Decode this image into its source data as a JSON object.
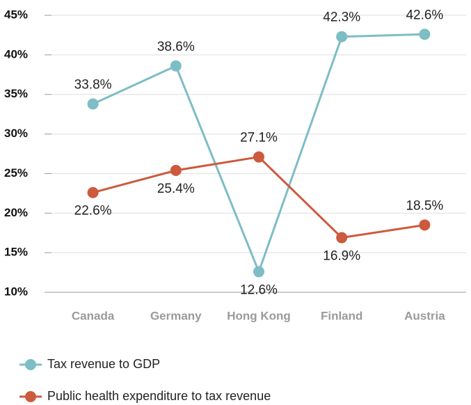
{
  "chart_data": {
    "type": "line",
    "categories": [
      "Canada",
      "Germany",
      "Hong Kong",
      "Finland",
      "Austria"
    ],
    "series": [
      {
        "name": "Tax revenue to GDP",
        "color": "#7dbdc5",
        "values": [
          33.8,
          38.6,
          12.6,
          42.3,
          42.6
        ],
        "value_labels": [
          "33.8%",
          "38.6%",
          "12.6%",
          "42.3%",
          "42.6%"
        ]
      },
      {
        "name": "Public health expenditure to tax revenue",
        "color": "#cc5a3d",
        "values": [
          22.6,
          25.4,
          27.1,
          16.9,
          18.5
        ],
        "value_labels": [
          "22.6%",
          "25.4%",
          "27.1%",
          "16.9%",
          "18.5%"
        ]
      }
    ],
    "ylim": [
      10,
      45
    ],
    "yticks": [
      {
        "value": 10,
        "label": "10%"
      },
      {
        "value": 15,
        "label": "15%"
      },
      {
        "value": 20,
        "label": "20%"
      },
      {
        "value": 25,
        "label": "25%"
      },
      {
        "value": 30,
        "label": "30%"
      },
      {
        "value": 35,
        "label": "35%"
      },
      {
        "value": 40,
        "label": "40%"
      },
      {
        "value": 45,
        "label": "45%"
      }
    ],
    "grid": true,
    "legend": "bottom"
  }
}
